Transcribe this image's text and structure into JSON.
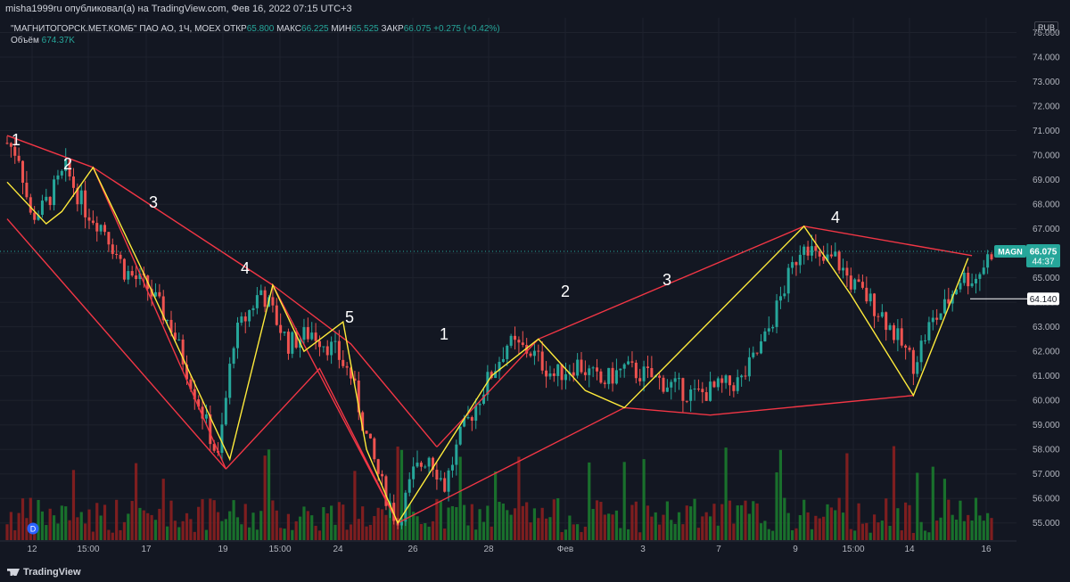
{
  "header": {
    "title": "misha1999ru опубликовал(а) на TradingView.com, Фев 16, 2022 07:15 UTC+3"
  },
  "legend": {
    "symbol": "\"МАГНИТОГОРСК.МЕТ.КОМБ\" ПАО АО, 1Ч, MOEX",
    "open_label": "ОТКР",
    "open_value": "65.800",
    "high_label": "МАКС",
    "high_value": "66.225",
    "low_label": "МИН",
    "low_value": "65.525",
    "close_label": "ЗАКР",
    "close_value": "66.075",
    "change": "+0.275 (+0.42%)",
    "volume_label": "Объём",
    "volume_value": "674.37K"
  },
  "currency_label": "RUB",
  "price_axis": {
    "ticks": [
      "75.000",
      "74.000",
      "73.000",
      "72.000",
      "71.000",
      "70.000",
      "69.000",
      "68.000",
      "67.000",
      "66.000",
      "65.000",
      "64.000",
      "63.000",
      "62.000",
      "61.000",
      "60.000",
      "59.000",
      "58.000",
      "57.000",
      "56.000",
      "55.000"
    ],
    "min": 54.3,
    "max": 75.6
  },
  "time_axis": {
    "labels": [
      "12",
      "15:00",
      "17",
      "19",
      "15:00",
      "24",
      "26",
      "28",
      "Фев",
      "3",
      "7",
      "9",
      "15:00",
      "14",
      "16"
    ]
  },
  "price_badge": {
    "symbol": "MAGN",
    "price": "66.075",
    "countdown": "44:37"
  },
  "level_badge": {
    "price": "64.140"
  },
  "wave_labels": [
    "1",
    "2",
    "3",
    "4",
    "5",
    "1",
    "2",
    "3",
    "4"
  ],
  "footer": {
    "brand": "TradingView"
  },
  "colors": {
    "background": "#131722",
    "up": "#26a69a",
    "down": "#ef5350",
    "channel": "#f23645",
    "zigzag": "#ffeb3b",
    "volume_up": "#1b7a2e",
    "volume_down": "#8b1f1f"
  },
  "chart_data": {
    "type": "candlestick",
    "title": "",
    "xlabel": "",
    "ylabel": "",
    "ylim": [
      54.3,
      75.6
    ],
    "close": 66.075,
    "high": 66.225,
    "low": 65.525,
    "open": 65.8,
    "price_path": [
      {
        "t": 0,
        "p": 70.5
      },
      {
        "t": 3,
        "p": 70.0
      },
      {
        "t": 6,
        "p": 67.5
      },
      {
        "t": 9,
        "p": 67.8
      },
      {
        "t": 15,
        "p": 69.4
      },
      {
        "t": 20,
        "p": 67.8
      },
      {
        "t": 25,
        "p": 67.0
      },
      {
        "t": 30,
        "p": 65.3
      },
      {
        "t": 36,
        "p": 64.6
      },
      {
        "t": 42,
        "p": 63.0
      },
      {
        "t": 50,
        "p": 59.5
      },
      {
        "t": 54,
        "p": 57.6
      },
      {
        "t": 58,
        "p": 62.5
      },
      {
        "t": 65,
        "p": 64.5
      },
      {
        "t": 72,
        "p": 62.3
      },
      {
        "t": 78,
        "p": 62.8
      },
      {
        "t": 84,
        "p": 62.0
      },
      {
        "t": 88,
        "p": 61.0
      },
      {
        "t": 92,
        "p": 58.5
      },
      {
        "t": 96,
        "p": 56.5
      },
      {
        "t": 100,
        "p": 55.0
      },
      {
        "t": 104,
        "p": 57.0
      },
      {
        "t": 108,
        "p": 57.8
      },
      {
        "t": 112,
        "p": 56.5
      },
      {
        "t": 116,
        "p": 58.5
      },
      {
        "t": 122,
        "p": 60.5
      },
      {
        "t": 128,
        "p": 62.3
      },
      {
        "t": 134,
        "p": 62.0
      },
      {
        "t": 140,
        "p": 61.0
      },
      {
        "t": 146,
        "p": 61.5
      },
      {
        "t": 152,
        "p": 60.7
      },
      {
        "t": 158,
        "p": 61.3
      },
      {
        "t": 164,
        "p": 61.0
      },
      {
        "t": 170,
        "p": 60.6
      },
      {
        "t": 176,
        "p": 60.2
      },
      {
        "t": 182,
        "p": 60.5
      },
      {
        "t": 188,
        "p": 60.8
      },
      {
        "t": 194,
        "p": 62.5
      },
      {
        "t": 200,
        "p": 65.0
      },
      {
        "t": 204,
        "p": 66.6
      },
      {
        "t": 208,
        "p": 65.6
      },
      {
        "t": 212,
        "p": 65.8
      },
      {
        "t": 216,
        "p": 64.8
      },
      {
        "t": 220,
        "p": 64.2
      },
      {
        "t": 224,
        "p": 63.5
      },
      {
        "t": 228,
        "p": 62.5
      },
      {
        "t": 232,
        "p": 61.5
      },
      {
        "t": 236,
        "p": 63.0
      },
      {
        "t": 240,
        "p": 63.8
      },
      {
        "t": 244,
        "p": 65.0
      },
      {
        "t": 248,
        "p": 65.0
      },
      {
        "t": 252,
        "p": 66.075
      }
    ],
    "channel_lines": [
      [
        {
          "t": 0,
          "p": 70.8
        },
        {
          "t": 22,
          "p": 69.5
        },
        {
          "t": 56,
          "p": 57.2
        },
        {
          "t": 0,
          "p": 67.4
        }
      ],
      [
        {
          "t": 22,
          "p": 69.5
        },
        {
          "t": 68,
          "p": 64.7
        },
        {
          "t": 100,
          "p": 55.0
        },
        {
          "t": 80,
          "p": 61.3
        },
        {
          "t": 56,
          "p": 57.2
        }
      ],
      [
        {
          "t": 68,
          "p": 64.7
        },
        {
          "t": 88,
          "p": 62.3
        },
        {
          "t": 110,
          "p": 58.1
        }
      ],
      [
        {
          "t": 100,
          "p": 55.0
        },
        {
          "t": 158,
          "p": 59.7
        },
        {
          "t": 180,
          "p": 59.4
        },
        {
          "t": 232,
          "p": 60.2
        }
      ],
      [
        {
          "t": 110,
          "p": 58.1
        },
        {
          "t": 136,
          "p": 62.5
        },
        {
          "t": 204,
          "p": 67.1
        },
        {
          "t": 247,
          "p": 65.9
        }
      ]
    ],
    "zigzag_lines": [
      [
        {
          "t": 0,
          "p": 68.9
        },
        {
          "t": 10,
          "p": 67.2
        },
        {
          "t": 14,
          "p": 67.7
        },
        {
          "t": 22,
          "p": 69.5
        },
        {
          "t": 34,
          "p": 65.5
        },
        {
          "t": 57,
          "p": 57.6
        },
        {
          "t": 68,
          "p": 64.7
        },
        {
          "t": 76,
          "p": 62.0
        },
        {
          "t": 86,
          "p": 63.2
        },
        {
          "t": 92,
          "p": 58.0
        },
        {
          "t": 100,
          "p": 55.0
        },
        {
          "t": 124,
          "p": 61.0
        },
        {
          "t": 136,
          "p": 62.5
        },
        {
          "t": 148,
          "p": 60.4
        },
        {
          "t": 158,
          "p": 59.7
        },
        {
          "t": 204,
          "p": 67.1
        },
        {
          "t": 216,
          "p": 64.3
        },
        {
          "t": 232,
          "p": 60.2
        },
        {
          "t": 246,
          "p": 65.8
        }
      ]
    ]
  }
}
